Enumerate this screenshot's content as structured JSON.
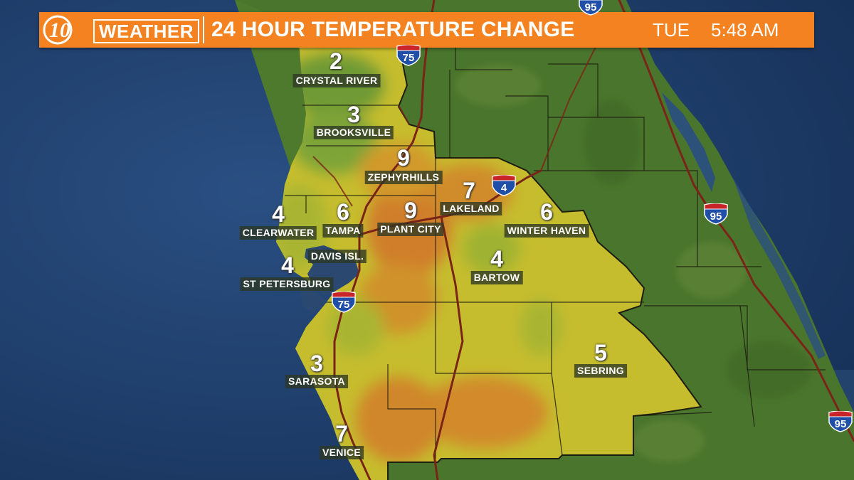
{
  "header": {
    "logo_mark": "10",
    "logo_text": "WEATHER",
    "title": "24 HOUR TEMPERATURE CHANGE",
    "day": "TUE",
    "time": "5:48 AM"
  },
  "colors": {
    "banner": "#f58220",
    "water": "#1e3f6e",
    "land_green": "#4e7a2e",
    "change_yellow": "#c9c12e",
    "change_orange": "#d08a2a"
  },
  "locations": [
    {
      "name": "CRYSTAL RIVER",
      "change": "2"
    },
    {
      "name": "BROOKSVILLE",
      "change": "3"
    },
    {
      "name": "ZEPHYRHILLS",
      "change": "9"
    },
    {
      "name": "LAKELAND",
      "change": "7"
    },
    {
      "name": "CLEARWATER",
      "change": "4"
    },
    {
      "name": "TAMPA",
      "change": "6"
    },
    {
      "name": "PLANT CITY",
      "change": "9"
    },
    {
      "name": "WINTER HAVEN",
      "change": "6"
    },
    {
      "name": "DAVIS ISL.",
      "change": ""
    },
    {
      "name": "ST PETERSBURG",
      "change": "4"
    },
    {
      "name": "BARTOW",
      "change": "4"
    },
    {
      "name": "SEBRING",
      "change": "5"
    },
    {
      "name": "SARASOTA",
      "change": "3"
    },
    {
      "name": "VENICE",
      "change": "7"
    }
  ],
  "highways": [
    {
      "route": "75",
      "icon": "interstate-shield-icon"
    },
    {
      "route": "75",
      "icon": "interstate-shield-icon"
    },
    {
      "route": "4",
      "icon": "interstate-shield-icon"
    },
    {
      "route": "95",
      "icon": "interstate-shield-icon"
    },
    {
      "route": "95",
      "icon": "interstate-shield-icon"
    },
    {
      "route": "95",
      "icon": "interstate-shield-icon"
    }
  ]
}
